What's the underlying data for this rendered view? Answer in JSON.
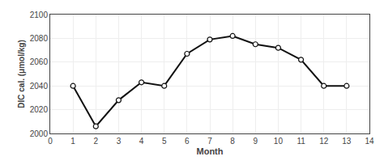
{
  "chart_data": {
    "type": "line",
    "x": [
      1,
      2,
      3,
      4,
      5,
      6,
      7,
      8,
      9,
      10,
      11,
      12,
      13
    ],
    "values": [
      2040,
      2006,
      2028,
      2043,
      2040,
      2067,
      2079,
      2082,
      2075,
      2072,
      2062,
      2040,
      2040
    ],
    "xlabel": "Month",
    "ylabel": "DIC cal. (μmol/kg)",
    "xlim": [
      0,
      14
    ],
    "ylim": [
      2000,
      2100
    ],
    "xticks": [
      0,
      1,
      2,
      3,
      4,
      5,
      6,
      7,
      8,
      9,
      10,
      11,
      12,
      13,
      14
    ],
    "yticks": [
      2000,
      2020,
      2040,
      2060,
      2080,
      2100
    ],
    "color": "#111111",
    "marker": "circle",
    "grid": true
  }
}
